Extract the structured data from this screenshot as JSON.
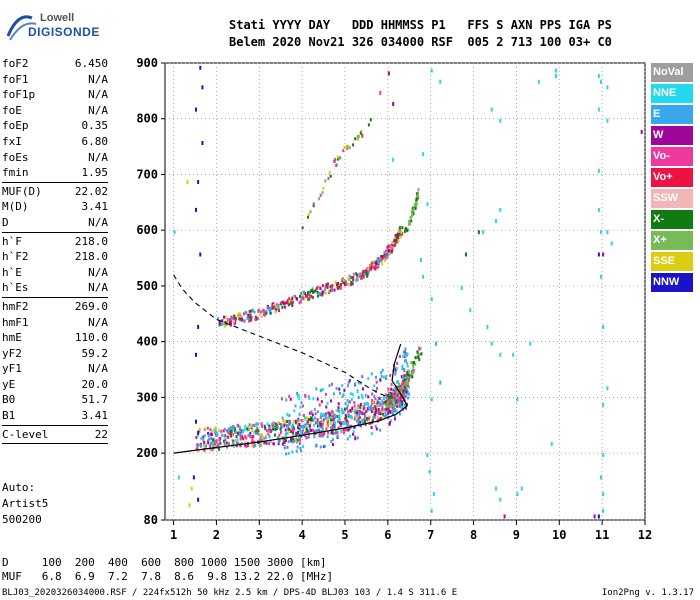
{
  "logo": {
    "line1": "Lowell",
    "line2": "DIGISONDE"
  },
  "header": {
    "line1": "Stati YYYY DAY   DDD HHMMSS P1   FFS S AXN PPS IGA PS",
    "line2": "Belem 2020 Nov21 326 034000 RSF  005 2 713 100 03+ C0"
  },
  "params": [
    {
      "label": "foF2",
      "value": "6.450"
    },
    {
      "label": "foF1",
      "value": "N/A"
    },
    {
      "label": "foF1p",
      "value": "N/A"
    },
    {
      "label": "foE",
      "value": "N/A"
    },
    {
      "label": "foEp",
      "value": "0.35"
    },
    {
      "label": "fxI",
      "value": "6.80"
    },
    {
      "label": "foEs",
      "value": "N/A"
    },
    {
      "label": "fmin",
      "value": "1.95"
    },
    {
      "sep": true
    },
    {
      "label": "MUF(D)",
      "value": "22.02"
    },
    {
      "label": "M(D)",
      "value": "3.41"
    },
    {
      "label": "D",
      "value": "N/A"
    },
    {
      "sep": true
    },
    {
      "label": "h`F",
      "value": "218.0"
    },
    {
      "label": "h`F2",
      "value": "218.0"
    },
    {
      "label": "h`E",
      "value": "N/A"
    },
    {
      "label": "h`Es",
      "value": "N/A"
    },
    {
      "sep": true
    },
    {
      "label": "hmF2",
      "value": "269.0"
    },
    {
      "label": "hmF1",
      "value": "N/A"
    },
    {
      "label": "hmE",
      "value": "110.0"
    },
    {
      "label": "yF2",
      "value": "59.2"
    },
    {
      "label": "yF1",
      "value": "N/A"
    },
    {
      "label": "yE",
      "value": "20.0"
    },
    {
      "label": "B0",
      "value": "51.7"
    },
    {
      "label": "B1",
      "value": "3.41"
    },
    {
      "sep": true
    },
    {
      "label": "C-level",
      "value": "22"
    },
    {
      "sep": true
    }
  ],
  "auto": {
    "line1": "Auto:",
    "line2": "Artist5",
    "line3": "500200"
  },
  "legend": [
    {
      "label": "NoVal",
      "color": "#9e9e9e"
    },
    {
      "label": "NNE",
      "color": "#22d8ec"
    },
    {
      "label": "E",
      "color": "#3aa6ee"
    },
    {
      "label": "W",
      "color": "#a1069a"
    },
    {
      "label": "Vo-",
      "color": "#ee3a9e"
    },
    {
      "label": "Vo+",
      "color": "#ee1242"
    },
    {
      "label": "SSW",
      "color": "#f2b6b6"
    },
    {
      "label": "X-",
      "color": "#127a12"
    },
    {
      "label": "X+",
      "color": "#78ba58"
    },
    {
      "label": "SSE",
      "color": "#dccc12"
    },
    {
      "label": "NNW",
      "color": "#1a12c6"
    }
  ],
  "footer": {
    "line1": "D     100  200  400  600  800 1000 1500 3000 [km]",
    "line2": "MUF   6.8  6.9  7.2  7.8  8.6  9.8 13.2 22.0 [MHz]",
    "line3": "BLJ03_2020326034000.RSF / 224fx512h 50 kHz 2.5 km / DPS-4D BLJ03 103 / 1.4 S 311.6 E",
    "version": "Ion2Png v. 1.3.17"
  },
  "chart_data": {
    "type": "scatter",
    "title": "",
    "xlabel": "",
    "ylabel": "",
    "xlim": [
      0.8,
      12
    ],
    "ylim": [
      80,
      900
    ],
    "xticks": [
      1,
      2,
      3,
      4,
      5,
      6,
      7,
      8,
      9,
      10,
      11,
      12
    ],
    "yticks": [
      80,
      200,
      300,
      400,
      500,
      600,
      700,
      800,
      900
    ],
    "grid": "dotted",
    "legend_position": "right",
    "ordinary_trace_o": [
      [
        1.5,
        218
      ],
      [
        2.0,
        221
      ],
      [
        2.5,
        225
      ],
      [
        3.0,
        228
      ],
      [
        3.5,
        232
      ],
      [
        4.0,
        238
      ],
      [
        4.5,
        246
      ],
      [
        5.0,
        255
      ],
      [
        5.5,
        266
      ],
      [
        6.0,
        282
      ],
      [
        6.3,
        300
      ],
      [
        6.45,
        320
      ]
    ],
    "ordinary_trace_2hop": [
      [
        2.0,
        433
      ],
      [
        2.5,
        440
      ],
      [
        3.0,
        450
      ],
      [
        3.5,
        465
      ],
      [
        4.0,
        480
      ],
      [
        4.5,
        492
      ],
      [
        5.0,
        505
      ],
      [
        5.5,
        525
      ],
      [
        5.8,
        545
      ],
      [
        6.1,
        572
      ],
      [
        6.3,
        600
      ]
    ],
    "extraordinary_trace": [
      [
        5.9,
        290
      ],
      [
        6.2,
        300
      ],
      [
        6.5,
        340
      ],
      [
        6.75,
        390
      ]
    ],
    "extraordinary_2hop": [
      [
        6.4,
        600
      ],
      [
        6.6,
        640
      ],
      [
        6.7,
        672
      ]
    ],
    "upper_echoes": [
      [
        4.0,
        610
      ],
      [
        4.5,
        680
      ],
      [
        4.8,
        730
      ],
      [
        5.2,
        760
      ],
      [
        5.7,
        800
      ]
    ],
    "profile_solid": [
      [
        1.0,
        200
      ],
      [
        2.0,
        210
      ],
      [
        3.0,
        220
      ],
      [
        4.0,
        232
      ],
      [
        5.0,
        245
      ],
      [
        5.8,
        258
      ],
      [
        6.2,
        270
      ],
      [
        6.45,
        285
      ],
      [
        6.35,
        300
      ],
      [
        6.1,
        330
      ],
      [
        6.15,
        360
      ],
      [
        6.3,
        396
      ]
    ],
    "profile_dashed": [
      [
        1.0,
        520
      ],
      [
        1.2,
        495
      ],
      [
        1.5,
        470
      ],
      [
        2.0,
        440
      ],
      [
        3.0,
        410
      ],
      [
        4.0,
        380
      ],
      [
        5.0,
        345
      ],
      [
        5.6,
        315
      ],
      [
        6.0,
        300
      ]
    ],
    "scattered_points": [
      [
        1.6,
        895,
        "NNW"
      ],
      [
        1.65,
        860,
        "NNW"
      ],
      [
        1.5,
        820,
        "NNW"
      ],
      [
        1.65,
        760,
        "NNW"
      ],
      [
        1.55,
        690,
        "NNW"
      ],
      [
        1.5,
        640,
        "NNW"
      ],
      [
        1.6,
        560,
        "NNW"
      ],
      [
        1.55,
        430,
        "NNW"
      ],
      [
        1.5,
        380,
        "NNW"
      ],
      [
        1.5,
        260,
        "NNW"
      ],
      [
        1.55,
        240,
        "NNW"
      ],
      [
        1.45,
        160,
        "NNW"
      ],
      [
        1.55,
        120,
        "NNW"
      ],
      [
        1.35,
        110,
        "SSE"
      ],
      [
        1.4,
        140,
        "SSE"
      ],
      [
        1.3,
        690,
        "SSE"
      ],
      [
        1.0,
        600,
        "NNE"
      ],
      [
        1.1,
        160,
        "NNE"
      ],
      [
        6.0,
        885,
        "W"
      ],
      [
        6.1,
        830,
        "W"
      ],
      [
        5.8,
        850,
        "Vo-"
      ],
      [
        6.1,
        730,
        "NNE"
      ],
      [
        6.8,
        740,
        "NNE"
      ],
      [
        6.9,
        650,
        "NNE"
      ],
      [
        7.0,
        890,
        "NNE"
      ],
      [
        7.2,
        870,
        "NNE"
      ],
      [
        7.0,
        480,
        "NNE"
      ],
      [
        7.1,
        400,
        "E"
      ],
      [
        7.2,
        330,
        "E"
      ],
      [
        7.0,
        300,
        "NNE"
      ],
      [
        6.9,
        200,
        "NNE"
      ],
      [
        6.95,
        170,
        "NNE"
      ],
      [
        7.05,
        130,
        "NNE"
      ],
      [
        7.0,
        100,
        "NNE"
      ],
      [
        6.75,
        550,
        "NNE"
      ],
      [
        6.8,
        520,
        "NNE"
      ],
      [
        7.7,
        500,
        "NNE"
      ],
      [
        7.8,
        560,
        "X-"
      ],
      [
        7.9,
        460,
        "NNE"
      ],
      [
        8.3,
        430,
        "NNE"
      ],
      [
        8.4,
        400,
        "NNE"
      ],
      [
        8.6,
        380,
        "NNE"
      ],
      [
        8.2,
        600,
        "NNE"
      ],
      [
        8.1,
        600,
        "X-"
      ],
      [
        8.5,
        620,
        "NNE"
      ],
      [
        8.6,
        640,
        "NNE"
      ],
      [
        8.4,
        820,
        "NNE"
      ],
      [
        8.6,
        800,
        "NNE"
      ],
      [
        8.5,
        140,
        "NNE"
      ],
      [
        8.6,
        120,
        "NNE"
      ],
      [
        8.7,
        90,
        "W"
      ],
      [
        8.9,
        380,
        "NNE"
      ],
      [
        9.0,
        300,
        "NNE"
      ],
      [
        9.3,
        400,
        "NNE"
      ],
      [
        9.0,
        130,
        "NNE"
      ],
      [
        9.1,
        140,
        "NNE"
      ],
      [
        9.8,
        220,
        "NNE"
      ],
      [
        9.5,
        870,
        "NNE"
      ],
      [
        9.9,
        890,
        "NNE"
      ],
      [
        9.9,
        880,
        "NNE"
      ],
      [
        10.9,
        880,
        "NNE"
      ],
      [
        10.95,
        870,
        "NNE"
      ],
      [
        11.1,
        860,
        "NNE"
      ],
      [
        10.9,
        820,
        "NNE"
      ],
      [
        11.1,
        800,
        "NNE"
      ],
      [
        10.9,
        710,
        "NNE"
      ],
      [
        10.9,
        640,
        "NNE"
      ],
      [
        10.95,
        600,
        "NNE"
      ],
      [
        10.9,
        560,
        "NNW"
      ],
      [
        11.0,
        560,
        "W"
      ],
      [
        11.2,
        580,
        "NNE"
      ],
      [
        11.1,
        600,
        "NNE"
      ],
      [
        10.95,
        520,
        "NNE"
      ],
      [
        11.0,
        430,
        "NNE"
      ],
      [
        11.1,
        320,
        "NNE"
      ],
      [
        11.0,
        290,
        "NNE"
      ],
      [
        11.0,
        200,
        "NNE"
      ],
      [
        10.95,
        160,
        "NNE"
      ],
      [
        11.0,
        100,
        "NNE"
      ],
      [
        10.8,
        90,
        "W"
      ],
      [
        11.0,
        130,
        "NNE"
      ],
      [
        11.9,
        780,
        "W"
      ],
      [
        10.9,
        90,
        "NNW"
      ]
    ]
  }
}
